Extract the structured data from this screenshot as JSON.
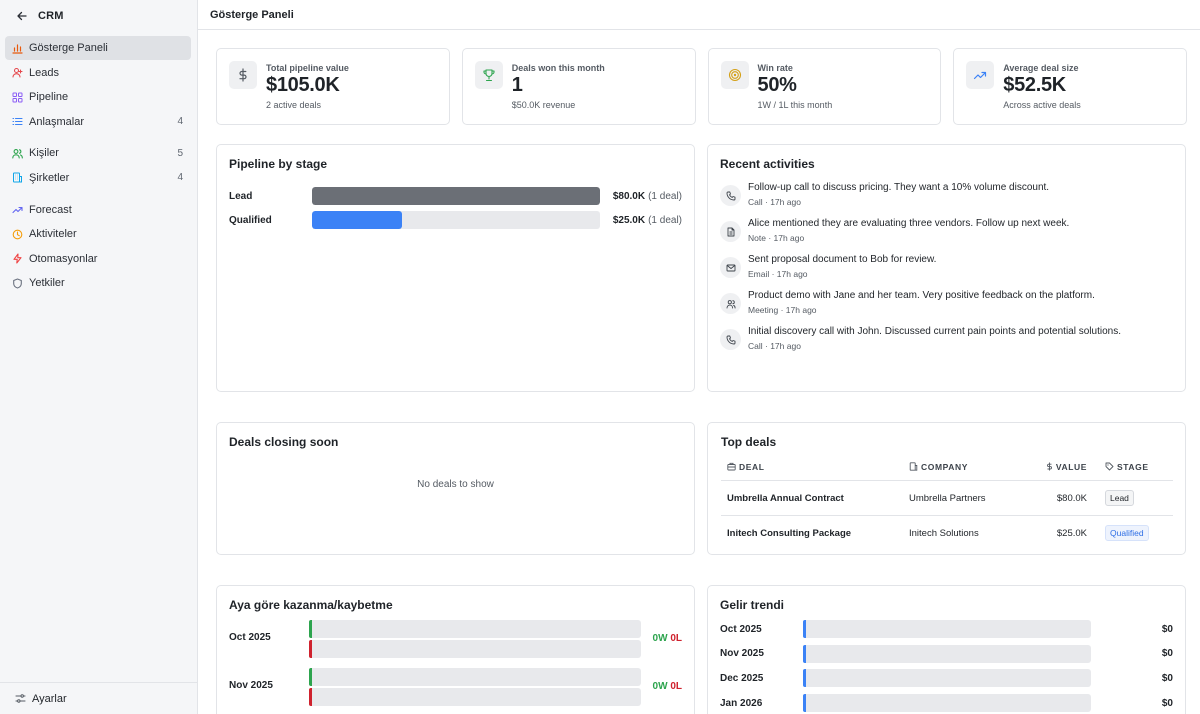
{
  "sidebar": {
    "brand": "CRM",
    "items": [
      {
        "label": "Gösterge Paneli",
        "count": "",
        "icon": "chart-bar-icon",
        "color": "#e8590c"
      },
      {
        "label": "Leads",
        "count": "",
        "icon": "user-plus-icon",
        "color": "#e5484d"
      },
      {
        "label": "Pipeline",
        "count": "",
        "icon": "grid-icon",
        "color": "#8b5cf6"
      },
      {
        "label": "Anlaşmalar",
        "count": "4",
        "icon": "list-icon",
        "color": "#3b82f6"
      },
      {
        "label": "Kişiler",
        "count": "5",
        "icon": "users-icon",
        "color": "#2da44e"
      },
      {
        "label": "Şirketler",
        "count": "4",
        "icon": "building-icon",
        "color": "#0ea5e9"
      },
      {
        "label": "Forecast",
        "count": "",
        "icon": "trending-up-icon",
        "color": "#6366f1"
      },
      {
        "label": "Aktiviteler",
        "count": "",
        "icon": "clock-icon",
        "color": "#f59e0b"
      },
      {
        "label": "Otomasyonlar",
        "count": "",
        "icon": "zap-icon",
        "color": "#ef4444"
      },
      {
        "label": "Yetkiler",
        "count": "",
        "icon": "shield-icon",
        "color": "#6b7280"
      }
    ],
    "footer": "Ayarlar"
  },
  "header": {
    "title": "Gösterge Paneli"
  },
  "stats": [
    {
      "label": "Total pipeline value",
      "value": "$105.0K",
      "sub": "2 active deals",
      "icon": "dollar-icon"
    },
    {
      "label": "Deals won this month",
      "value": "1",
      "sub": "$50.0K revenue",
      "icon": "trophy-icon"
    },
    {
      "label": "Win rate",
      "value": "50%",
      "sub": "1W / 1L this month",
      "icon": "target-icon"
    },
    {
      "label": "Average deal size",
      "value": "$52.5K",
      "sub": "Across active deals",
      "icon": "trending-up-icon"
    }
  ],
  "pipeline": {
    "title": "Pipeline by stage",
    "rows": [
      {
        "stage": "Lead",
        "value": "$80.0K",
        "count": "(1 deal)",
        "fill": 1.0,
        "color": "#6b6f76"
      },
      {
        "stage": "Qualified",
        "value": "$25.0K",
        "count": "(1 deal)",
        "fill": 0.3125,
        "color": "#3b82f6"
      }
    ]
  },
  "activities": {
    "title": "Recent activities",
    "items": [
      {
        "text": "Follow-up call to discuss pricing. They want a 10% volume discount.",
        "meta": "Call · 17h ago",
        "icon": "phone-icon"
      },
      {
        "text": "Alice mentioned they are evaluating three vendors. Follow up next week.",
        "meta": "Note · 17h ago",
        "icon": "note-icon"
      },
      {
        "text": "Sent proposal document to Bob for review.",
        "meta": "Email · 17h ago",
        "icon": "mail-icon"
      },
      {
        "text": "Product demo with Jane and her team. Very positive feedback on the platform.",
        "meta": "Meeting · 17h ago",
        "icon": "users-icon"
      },
      {
        "text": "Initial discovery call with John. Discussed current pain points and potential solutions.",
        "meta": "Call · 17h ago",
        "icon": "phone-icon"
      }
    ]
  },
  "closing": {
    "title": "Deals closing soon",
    "empty": "No deals to show"
  },
  "top_deals": {
    "title": "Top deals",
    "columns": {
      "deal": "DEAL",
      "company": "COMPANY",
      "value": "VALUE",
      "stage": "STAGE"
    },
    "rows": [
      {
        "deal": "Umbrella Annual Contract",
        "company": "Umbrella Partners",
        "value": "$80.0K",
        "stage": "Lead"
      },
      {
        "deal": "Initech Consulting Package",
        "company": "Initech Solutions",
        "value": "$25.0K",
        "stage": "Qualified"
      }
    ]
  },
  "winloss": {
    "title": "Aya göre kazanma/kaybetme",
    "rows": [
      {
        "month": "Oct 2025",
        "won": "0W",
        "lost": "0L"
      },
      {
        "month": "Nov 2025",
        "won": "0W",
        "lost": "0L"
      }
    ],
    "colors": {
      "won": "#2da44e",
      "lost": "#cf222e"
    }
  },
  "revenue": {
    "title": "Gelir trendi",
    "rows": [
      {
        "month": "Oct 2025",
        "value": "$0"
      },
      {
        "month": "Nov 2025",
        "value": "$0"
      },
      {
        "month": "Dec 2025",
        "value": "$0"
      },
      {
        "month": "Jan 2026",
        "value": "$0"
      }
    ]
  }
}
